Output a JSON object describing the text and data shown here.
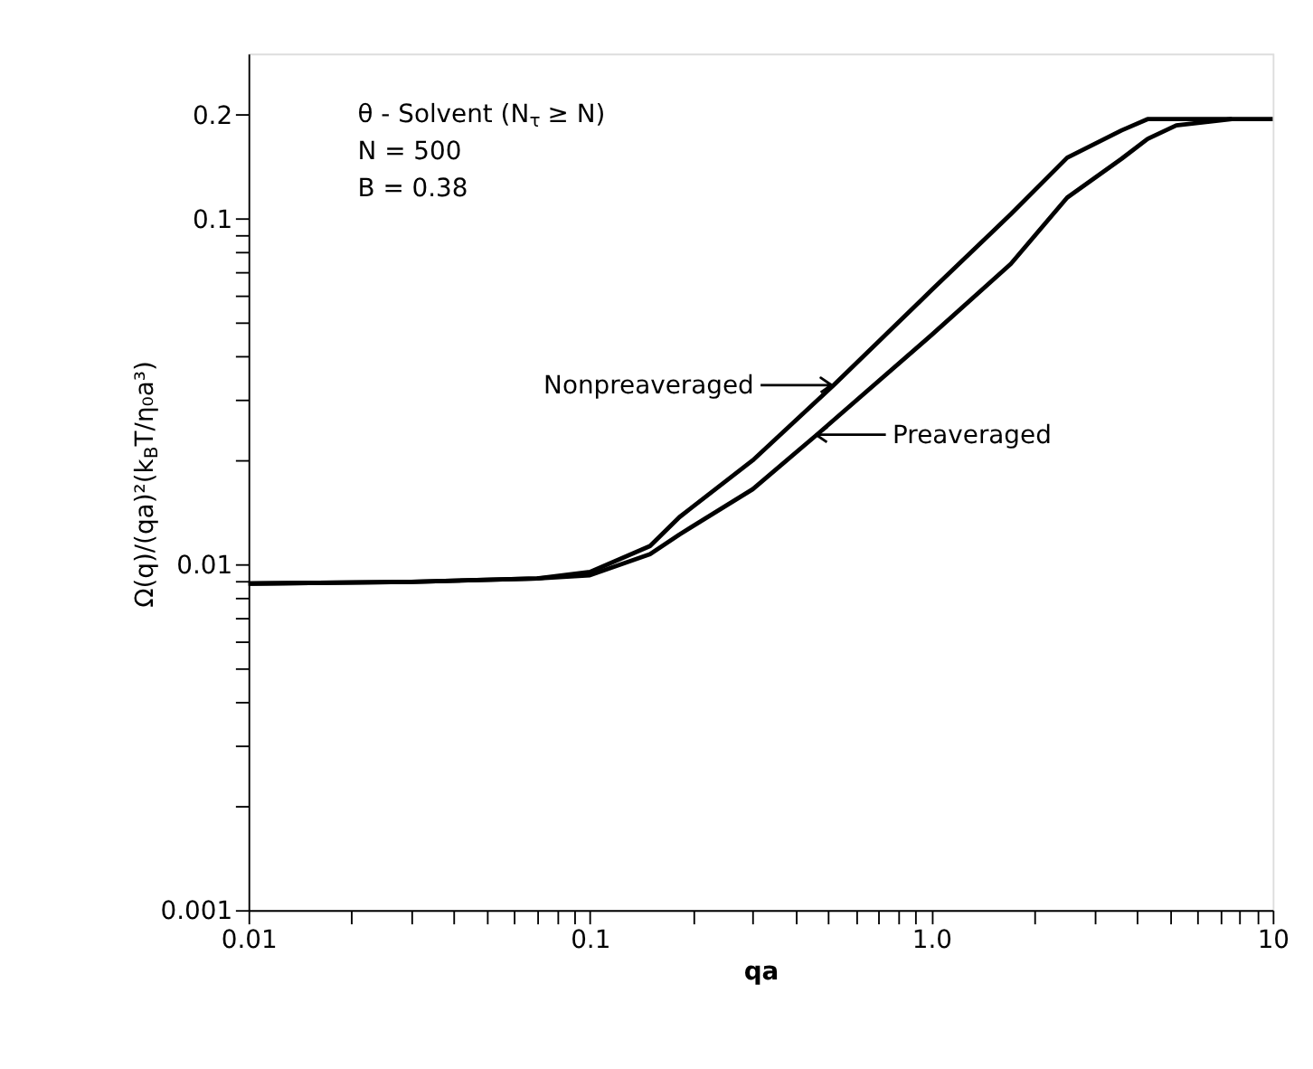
{
  "chart_data": {
    "type": "line",
    "xlabel": "qa",
    "ylabel": "Ω(q)/(qa)²(k$_{B}$T/η₀a³)",
    "log": "xy",
    "marker": "none",
    "line_style": "solid",
    "xlim": [
      0.01,
      10
    ],
    "ylim": [
      0.001,
      0.3
    ],
    "xticks": [
      0.01,
      {
        "value": 0.02,
        "label": null
      },
      {
        "value": 0.03,
        "label": null
      },
      {
        "value": 0.04,
        "label": null
      },
      {
        "value": 0.05,
        "label": null
      },
      {
        "value": 0.06,
        "label": null
      },
      {
        "value": 0.07,
        "label": null
      },
      {
        "value": 0.08,
        "label": null
      },
      {
        "value": 0.09,
        "label": null
      },
      0.1,
      {
        "value": 0.2,
        "label": null
      },
      {
        "value": 0.3,
        "label": null
      },
      {
        "value": 0.4,
        "label": null
      },
      {
        "value": 0.5,
        "label": null
      },
      {
        "value": 0.6,
        "label": null
      },
      {
        "value": 0.7,
        "label": null
      },
      {
        "value": 0.8,
        "label": null
      },
      {
        "value": 0.9,
        "label": null
      },
      {
        "value": 1,
        "label": "1.0"
      },
      {
        "value": 2,
        "label": null
      },
      {
        "value": 3,
        "label": null
      },
      {
        "value": 4,
        "label": null
      },
      {
        "value": 5,
        "label": null
      },
      {
        "value": 6,
        "label": null
      },
      {
        "value": 7,
        "label": null
      },
      {
        "value": 8,
        "label": null
      },
      {
        "value": 9,
        "label": null
      },
      10
    ],
    "yticks": [
      0.001,
      {
        "value": 0.002,
        "label": null
      },
      {
        "value": 0.003,
        "label": null
      },
      {
        "value": 0.004,
        "label": null
      },
      {
        "value": 0.005,
        "label": null
      },
      {
        "value": 0.006,
        "label": null
      },
      {
        "value": 0.007,
        "label": null
      },
      {
        "value": 0.008,
        "label": null
      },
      {
        "value": 0.009,
        "label": null
      },
      0.01,
      {
        "value": 0.02,
        "label": null
      },
      {
        "value": 0.03,
        "label": null
      },
      {
        "value": 0.04,
        "label": null
      },
      {
        "value": 0.05,
        "label": null
      },
      {
        "value": 0.06,
        "label": null
      },
      {
        "value": 0.07,
        "label": null
      },
      {
        "value": 0.08,
        "label": null
      },
      {
        "value": 0.09,
        "label": null
      },
      0.1,
      0.2
    ],
    "series": [
      {
        "color": "#000000",
        "x": [
          0.01,
          0.03,
          0.07,
          0.1,
          0.15,
          0.183,
          0.3,
          0.518,
          1.0,
          1.71,
          2.5,
          3.61,
          4.3,
          6,
          10
        ],
        "values": [
          0.0088,
          0.0089,
          0.0091,
          0.0095,
          0.0113,
          0.0137,
          0.02,
          0.033,
          0.062,
          0.103,
          0.15,
          0.18,
          0.194,
          0.194,
          0.194
        ]
      },
      {
        "color": "#000000",
        "x": [
          0.01,
          0.03,
          0.07,
          0.1,
          0.15,
          0.183,
          0.3,
          0.462,
          1.0,
          1.71,
          2.5,
          3.61,
          4.3,
          5.22,
          7.6
        ],
        "values": [
          0.0088,
          0.0089,
          0.0091,
          0.0093,
          0.0107,
          0.0122,
          0.0165,
          0.0237,
          0.046,
          0.074,
          0.115,
          0.149,
          0.17,
          0.186,
          0.194
        ]
      }
    ],
    "annotations": [
      "θ - Solvent (N$_{τ}$ ≥ N)",
      "N = 500",
      "B = 0.38",
      {
        "text": "Nonpreaveraged",
        "x": 0.51,
        "y": 0.033
      },
      {
        "text": "Preaveraged",
        "x": 0.46,
        "y": 0.0237
      }
    ]
  }
}
